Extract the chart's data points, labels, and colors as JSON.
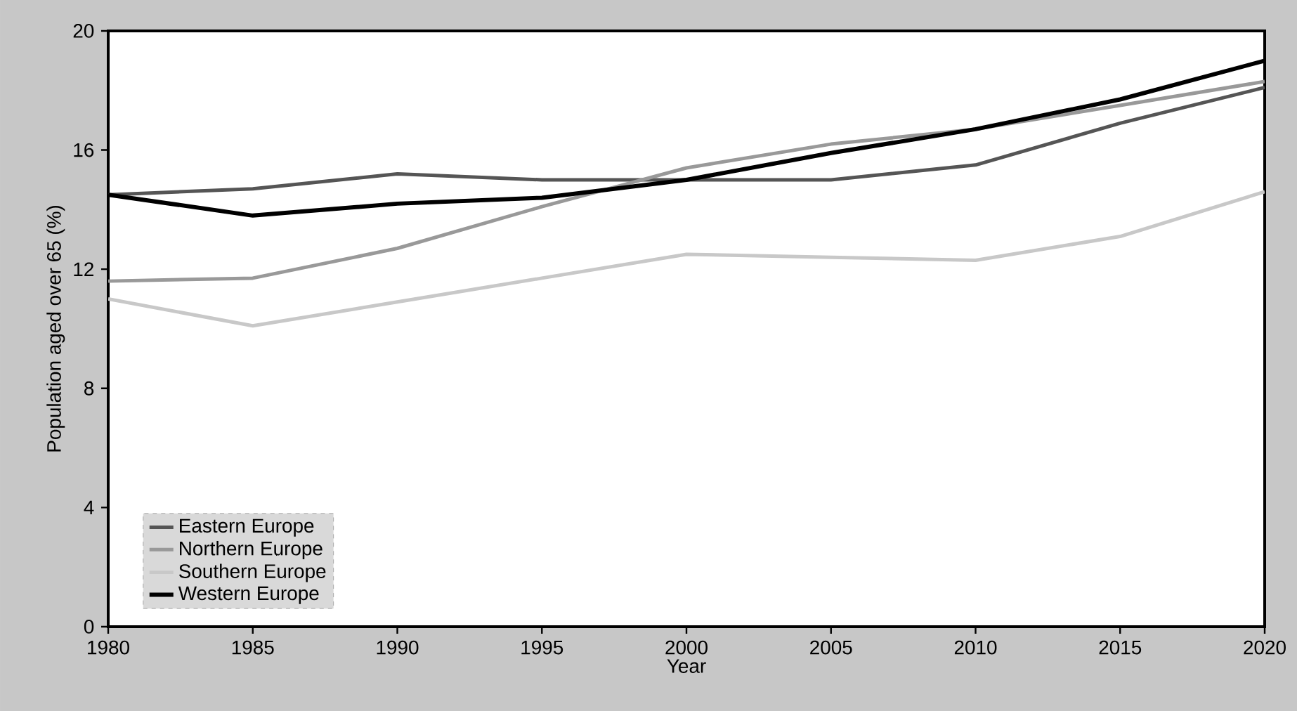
{
  "chart_data": {
    "type": "line",
    "xlabel": "Year",
    "ylabel": "Population aged over 65 (%)",
    "x": [
      1980,
      1985,
      1990,
      1995,
      2000,
      2005,
      2010,
      2015,
      2020
    ],
    "series": [
      {
        "name": "Eastern Europe",
        "color": "#555555",
        "values": [
          14.5,
          14.7,
          15.2,
          15.0,
          15.0,
          15.0,
          15.5,
          16.9,
          18.1
        ]
      },
      {
        "name": "Northern Europe",
        "color": "#999999",
        "values": [
          11.6,
          11.7,
          12.7,
          14.1,
          15.4,
          16.2,
          16.7,
          17.5,
          18.3
        ]
      },
      {
        "name": "Southern Europe",
        "color": "#c8c8c8",
        "values": [
          11.0,
          10.1,
          10.9,
          11.7,
          12.5,
          12.4,
          12.3,
          13.1,
          14.6
        ]
      },
      {
        "name": "Western Europe",
        "color": "#000000",
        "values": [
          14.5,
          13.8,
          14.2,
          14.4,
          15.0,
          15.9,
          16.7,
          17.7,
          19.0
        ]
      }
    ],
    "xlim": [
      1980,
      2020
    ],
    "xticks": [
      1980,
      1985,
      1990,
      1995,
      2000,
      2005,
      2010,
      2015,
      2020
    ],
    "ylim": [
      0,
      20
    ],
    "yticks": [
      0,
      4,
      8,
      12,
      16,
      20
    ],
    "grid": false,
    "legend": "bottom left",
    "marker": "none",
    "line_style": "solid"
  }
}
